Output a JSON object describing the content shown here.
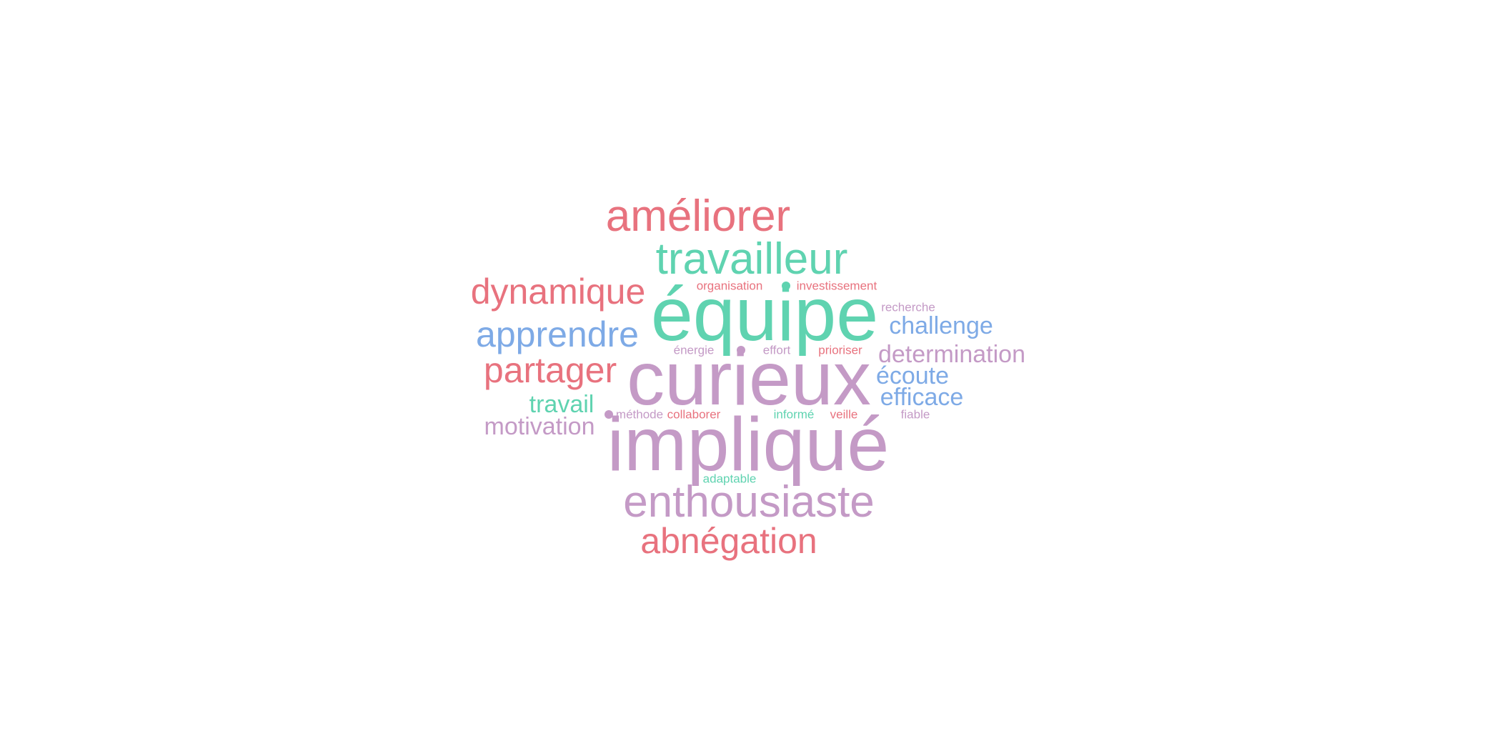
{
  "colors": {
    "red": "#e8727e",
    "green": "#5fd3b0",
    "purple": "#c49ac6",
    "blue": "#7eaae6"
  },
  "words": [
    {
      "text": "améliorer",
      "color": "red"
    },
    {
      "text": "travailleur",
      "color": "green"
    },
    {
      "text": "dynamique",
      "color": "red"
    },
    {
      "text": "organisation",
      "color": "red"
    },
    {
      "text": "investissement",
      "color": "red"
    },
    {
      "text": "équipe",
      "color": "green"
    },
    {
      "text": "recherche",
      "color": "purple"
    },
    {
      "text": "apprendre",
      "color": "blue"
    },
    {
      "text": "challenge",
      "color": "blue"
    },
    {
      "text": "énergie",
      "color": "purple"
    },
    {
      "text": "effort",
      "color": "purple"
    },
    {
      "text": "prioriser",
      "color": "red"
    },
    {
      "text": "determination",
      "color": "purple"
    },
    {
      "text": "partager",
      "color": "red"
    },
    {
      "text": "curieux",
      "color": "purple"
    },
    {
      "text": "écoute",
      "color": "blue"
    },
    {
      "text": "efficace",
      "color": "blue"
    },
    {
      "text": "travail",
      "color": "green"
    },
    {
      "text": "méthode",
      "color": "purple"
    },
    {
      "text": "collaborer",
      "color": "red"
    },
    {
      "text": "informé",
      "color": "green"
    },
    {
      "text": "veille",
      "color": "red"
    },
    {
      "text": "fiable",
      "color": "purple"
    },
    {
      "text": "motivation",
      "color": "purple"
    },
    {
      "text": "impliqué",
      "color": "purple"
    },
    {
      "text": "adaptable",
      "color": "green"
    },
    {
      "text": "enthousiaste",
      "color": "purple"
    },
    {
      "text": "abnégation",
      "color": "red"
    }
  ],
  "dots": [
    {
      "color": "green"
    },
    {
      "color": "purple"
    },
    {
      "color": "purple"
    }
  ]
}
